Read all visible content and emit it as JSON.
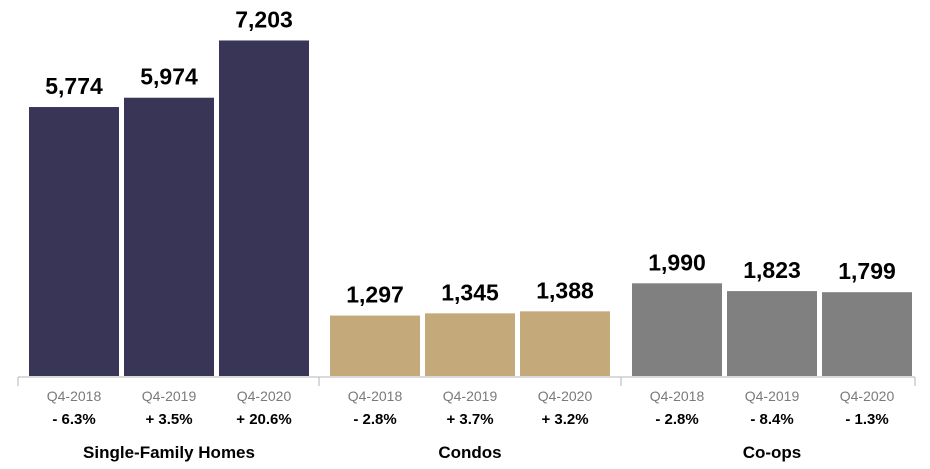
{
  "chart_data": {
    "type": "bar",
    "ylim": [
      0,
      7900
    ],
    "groups": [
      {
        "name": "Single-Family Homes",
        "color": "#393557",
        "bars": [
          {
            "period": "Q4-2018",
            "value": 5774,
            "value_label": "5,774",
            "change": "- 6.3%"
          },
          {
            "period": "Q4-2019",
            "value": 5974,
            "value_label": "5,974",
            "change": "+ 3.5%"
          },
          {
            "period": "Q4-2020",
            "value": 7203,
            "value_label": "7,203",
            "change": "+ 20.6%"
          }
        ]
      },
      {
        "name": "Condos",
        "color": "#c4a97a",
        "bars": [
          {
            "period": "Q4-2018",
            "value": 1297,
            "value_label": "1,297",
            "change": "- 2.8%"
          },
          {
            "period": "Q4-2019",
            "value": 1345,
            "value_label": "1,345",
            "change": "+ 3.7%"
          },
          {
            "period": "Q4-2020",
            "value": 1388,
            "value_label": "1,388",
            "change": "+ 3.2%"
          }
        ]
      },
      {
        "name": "Co-ops",
        "color": "#808080",
        "bars": [
          {
            "period": "Q4-2018",
            "value": 1990,
            "value_label": "1,990",
            "change": "- 2.8%"
          },
          {
            "period": "Q4-2019",
            "value": 1823,
            "value_label": "1,823",
            "change": "- 8.4%"
          },
          {
            "period": "Q4-2020",
            "value": 1799,
            "value_label": "1,799",
            "change": "- 1.3%"
          }
        ]
      }
    ]
  }
}
